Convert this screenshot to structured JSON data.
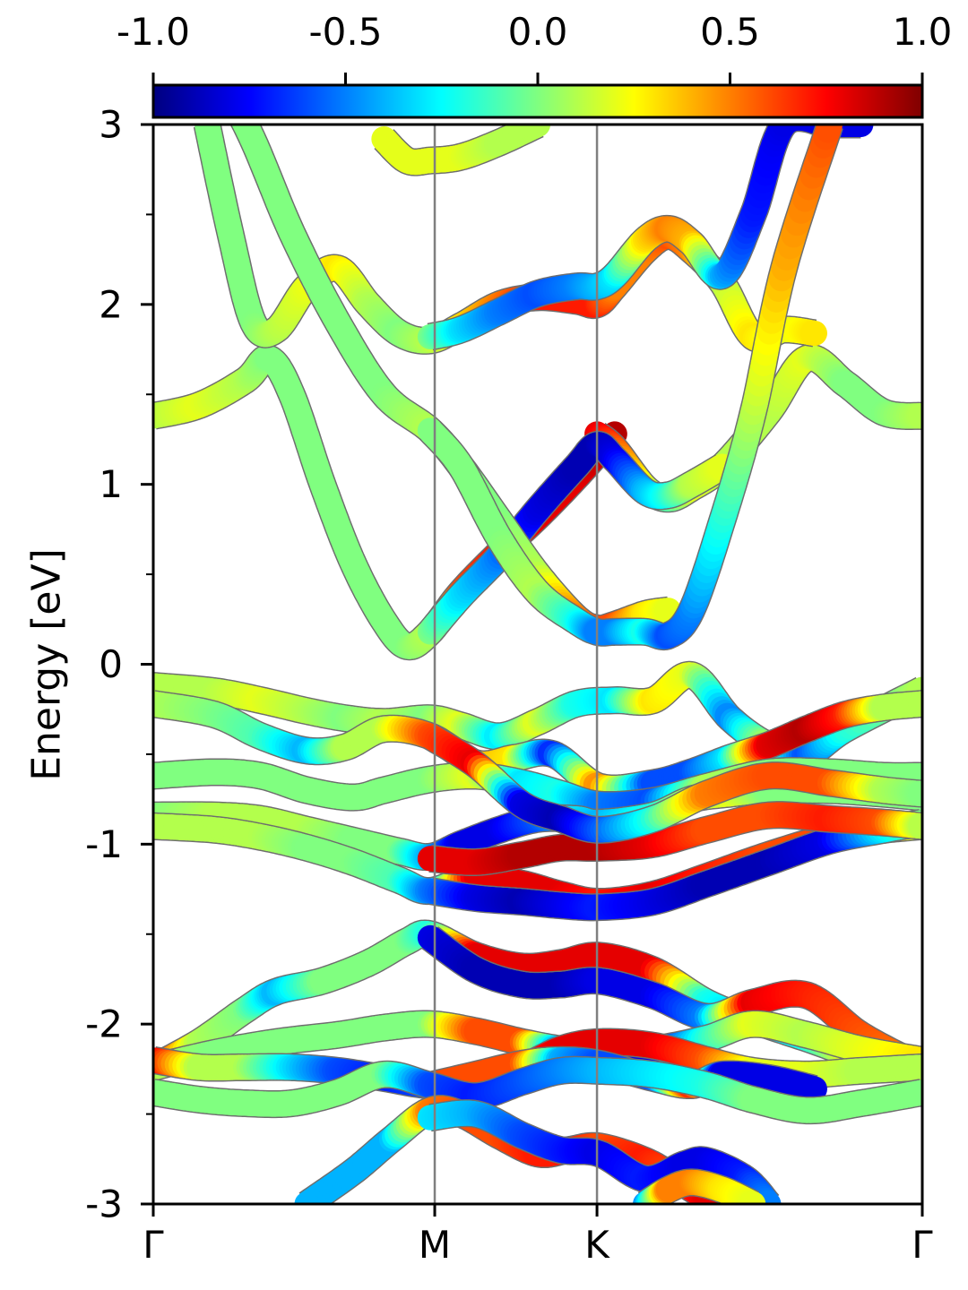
{
  "chart_data": {
    "type": "line",
    "title": "",
    "xlabel": "",
    "ylabel": "Energy [eV]",
    "ylim": [
      -3,
      3
    ],
    "yticks": [
      "3",
      "2",
      "1",
      "0",
      "-1",
      "-2",
      "-3"
    ],
    "ytick_values": [
      3,
      2,
      1,
      0,
      -1,
      -2,
      -3
    ],
    "x_high_symmetry_labels": [
      "Γ",
      "M",
      "K",
      "Γ"
    ],
    "x_high_symmetry_positions": [
      0,
      0.366,
      0.577,
      1.0
    ],
    "vertical_lines_at": [
      0.366,
      0.577
    ],
    "colorbar": {
      "range": [
        -1.0,
        1.0
      ],
      "tick_labels": [
        "-1.0",
        "-0.5",
        "0.0",
        "0.5",
        "1.0"
      ],
      "tick_values": [
        -1.0,
        -0.5,
        0.0,
        0.5,
        1.0
      ],
      "colormap": "jet"
    },
    "band_width_eV": 0.07,
    "series": [
      {
        "x": [
          0.0,
          0.08,
          0.14,
          0.2,
          0.25,
          0.3,
          0.36,
          0.4,
          0.45,
          0.5,
          0.55,
          0.6,
          0.65,
          0.7,
          0.75,
          0.8,
          0.85,
          0.9,
          1.0
        ],
        "values": [
          -0.12,
          -0.15,
          -0.2,
          -0.26,
          -0.3,
          -0.32,
          -0.3,
          -0.34,
          -0.4,
          -0.32,
          -0.22,
          -0.2,
          -0.2,
          -0.06,
          -0.3,
          -0.45,
          -0.5,
          -0.36,
          -0.14
        ],
        "w": [
          0.1,
          0.1,
          0.2,
          0.1,
          0.0,
          0.1,
          0.0,
          0.2,
          -0.3,
          0.2,
          -0.2,
          -0.3,
          0.3,
          0.2,
          -0.5,
          0.1,
          -0.6,
          -0.2,
          0.1
        ]
      },
      {
        "x": [
          0.0,
          0.08,
          0.14,
          0.2,
          0.25,
          0.3,
          0.36,
          0.42,
          0.47,
          0.52,
          0.58,
          0.65,
          0.7,
          0.75,
          0.8,
          0.85,
          0.9,
          0.95,
          1.0
        ],
        "values": [
          -0.22,
          -0.28,
          -0.4,
          -0.48,
          -0.46,
          -0.36,
          -0.4,
          -0.55,
          -0.52,
          -0.5,
          -0.68,
          -0.66,
          -0.6,
          -0.52,
          -0.45,
          -0.36,
          -0.28,
          -0.24,
          -0.22
        ],
        "w": [
          0.1,
          0.0,
          -0.1,
          -0.4,
          0.1,
          0.1,
          0.6,
          0.4,
          0.3,
          -0.7,
          0.5,
          -0.6,
          -0.6,
          -0.3,
          0.8,
          0.9,
          0.7,
          0.1,
          0.1
        ]
      },
      {
        "x": [
          0.0,
          0.08,
          0.14,
          0.2,
          0.26,
          0.3,
          0.36,
          0.42,
          0.48,
          0.53,
          0.58,
          0.65,
          0.72,
          0.8,
          0.88,
          0.95,
          1.0
        ],
        "values": [
          -0.62,
          -0.6,
          -0.62,
          -0.7,
          -0.74,
          -0.7,
          -0.64,
          -0.62,
          -0.66,
          -0.72,
          -0.78,
          -0.76,
          -0.68,
          -0.6,
          -0.6,
          -0.62,
          -0.62
        ],
        "w": [
          0.0,
          0.0,
          0.0,
          0.0,
          0.0,
          0.0,
          0.0,
          0.2,
          -0.3,
          -0.2,
          -0.5,
          -0.6,
          0.1,
          0.0,
          0.0,
          0.0,
          0.0
        ]
      },
      {
        "x": [
          0.0,
          0.08,
          0.14,
          0.2,
          0.26,
          0.32,
          0.36,
          0.4,
          0.45,
          0.5,
          0.55,
          0.58,
          0.65,
          0.7,
          0.75,
          0.8,
          0.88,
          0.95,
          1.0
        ],
        "values": [
          -0.84,
          -0.84,
          -0.86,
          -0.92,
          -0.98,
          -1.04,
          -1.07,
          -1.0,
          -0.92,
          -0.86,
          -0.86,
          -0.88,
          -0.84,
          -0.75,
          -0.72,
          -0.7,
          -0.7,
          -0.72,
          -0.74
        ],
        "w": [
          0.0,
          0.1,
          0.1,
          0.1,
          0.0,
          0.0,
          -0.4,
          -0.8,
          -0.8,
          -0.6,
          -0.3,
          -0.4,
          -0.2,
          0.1,
          0.2,
          0.0,
          0.0,
          0.0,
          0.0
        ]
      },
      {
        "x": [
          0.0,
          0.08,
          0.14,
          0.2,
          0.26,
          0.32,
          0.36,
          0.42,
          0.48,
          0.53,
          0.58,
          0.65,
          0.72,
          0.8,
          0.88,
          0.95,
          1.0
        ],
        "values": [
          -0.9,
          -0.92,
          -0.96,
          -1.02,
          -1.1,
          -1.2,
          -1.26,
          -1.18,
          -1.22,
          -1.28,
          -1.32,
          -1.28,
          -1.18,
          -1.06,
          -0.96,
          -0.92,
          -0.9
        ],
        "w": [
          0.1,
          0.1,
          0.1,
          0.0,
          0.0,
          -0.1,
          -0.5,
          0.8,
          0.8,
          0.8,
          0.7,
          0.8,
          0.7,
          0.6,
          0.6,
          0.5,
          0.1
        ]
      },
      {
        "x": [
          0.36,
          0.42,
          0.48,
          0.53,
          0.58,
          0.65,
          0.72,
          0.8,
          0.88,
          0.95,
          1.0
        ],
        "values": [
          -1.26,
          -1.3,
          -1.32,
          -1.34,
          -1.35,
          -1.32,
          -1.22,
          -1.1,
          -0.98,
          -0.92,
          -0.88
        ],
        "w": [
          -0.5,
          -0.8,
          -0.9,
          -0.8,
          -0.7,
          -0.8,
          -0.9,
          -0.9,
          -0.8,
          -0.3,
          0.0
        ]
      },
      {
        "x": [
          0.36,
          0.42,
          0.48,
          0.53,
          0.58,
          0.65,
          0.72,
          0.8,
          0.88,
          0.95,
          1.0
        ],
        "values": [
          -1.08,
          -1.1,
          -1.06,
          -1.02,
          -1.02,
          -1.0,
          -0.92,
          -0.84,
          -0.86,
          -0.88,
          -0.9
        ],
        "w": [
          0.8,
          0.8,
          0.9,
          0.9,
          0.9,
          0.8,
          0.6,
          0.6,
          0.7,
          0.6,
          0.1
        ]
      },
      {
        "x": [
          0.36,
          0.42,
          0.48,
          0.53,
          0.58,
          0.65,
          0.72,
          0.8,
          0.88,
          0.95,
          1.0
        ],
        "values": [
          -0.4,
          -0.56,
          -0.78,
          -0.86,
          -0.92,
          -0.86,
          -0.72,
          -0.62,
          -0.66,
          -0.7,
          -0.72
        ],
        "w": [
          0.6,
          0.8,
          -0.8,
          -0.9,
          -0.6,
          -0.2,
          0.5,
          0.6,
          0.6,
          0.1,
          0.0
        ]
      },
      {
        "x": [
          0.0,
          0.06,
          0.12,
          0.16,
          0.22,
          0.28,
          0.33,
          0.36,
          0.42,
          0.48,
          0.53,
          0.58,
          0.65,
          0.72,
          0.78,
          0.85,
          0.92,
          1.0
        ],
        "values": [
          -2.24,
          -2.1,
          -1.92,
          -1.82,
          -1.76,
          -1.66,
          -1.54,
          -1.5,
          -1.62,
          -1.68,
          -1.66,
          -1.62,
          -1.7,
          -1.88,
          -1.98,
          -2.08,
          -2.18,
          -2.24
        ],
        "w": [
          0.8,
          0.1,
          0.0,
          -0.4,
          0.0,
          0.0,
          0.0,
          -0.2,
          0.8,
          0.8,
          0.8,
          0.8,
          0.8,
          -0.2,
          -0.4,
          -0.2,
          0.3,
          0.6
        ]
      },
      {
        "x": [
          0.36,
          0.42,
          0.48,
          0.53,
          0.58,
          0.65,
          0.72,
          0.78,
          0.85,
          0.92,
          1.0
        ],
        "values": [
          -1.52,
          -1.7,
          -1.78,
          -1.78,
          -1.76,
          -1.84,
          -1.96,
          -1.88,
          -1.84,
          -2.06,
          -2.24
        ],
        "w": [
          -0.8,
          -0.9,
          -0.9,
          -0.9,
          -0.8,
          -0.8,
          -0.5,
          0.8,
          0.7,
          0.6,
          0.5
        ]
      },
      {
        "x": [
          0.0,
          0.08,
          0.16,
          0.24,
          0.3,
          0.36,
          0.42,
          0.48,
          0.53,
          0.58,
          0.65,
          0.72,
          0.78,
          0.85,
          0.92,
          1.0
        ],
        "values": [
          -2.24,
          -2.16,
          -2.1,
          -2.06,
          -2.02,
          -2.0,
          -2.04,
          -2.1,
          -2.14,
          -2.16,
          -2.14,
          -2.08,
          -2.0,
          -2.06,
          -2.14,
          -2.2
        ],
        "w": [
          0.1,
          0.0,
          0.0,
          0.0,
          0.0,
          0.0,
          0.6,
          0.6,
          -0.5,
          -0.7,
          -0.8,
          -0.2,
          0.2,
          0.1,
          0.2,
          0.3
        ]
      },
      {
        "x": [
          0.0,
          0.06,
          0.12,
          0.18,
          0.24,
          0.3,
          0.36,
          0.42,
          0.48,
          0.53,
          0.58,
          0.65,
          0.72,
          0.78,
          0.85,
          0.92,
          1.0
        ],
        "values": [
          -2.2,
          -2.24,
          -2.24,
          -2.24,
          -2.26,
          -2.3,
          -2.34,
          -2.32,
          -2.24,
          -2.14,
          -2.1,
          -2.12,
          -2.2,
          -2.26,
          -2.28,
          -2.26,
          -2.24
        ],
        "w": [
          0.8,
          0.1,
          0.1,
          -0.3,
          -0.6,
          -0.7,
          -0.6,
          0.7,
          0.7,
          0.8,
          0.8,
          0.8,
          0.6,
          0.2,
          0.2,
          0.1,
          0.1
        ]
      },
      {
        "x": [
          0.36,
          0.42,
          0.48,
          0.53,
          0.58,
          0.65,
          0.7,
          0.74,
          0.8,
          0.86
        ],
        "values": [
          -2.34,
          -2.28,
          -2.22,
          -2.2,
          -2.22,
          -2.3,
          -2.34,
          -2.28,
          -2.3,
          -2.36
        ],
        "w": [
          0.6,
          0.6,
          0.6,
          -0.4,
          -0.6,
          -0.6,
          0.7,
          -0.8,
          -0.8,
          -0.8
        ]
      },
      {
        "x": [
          0.0,
          0.06,
          0.12,
          0.18,
          0.24,
          0.3,
          0.36,
          0.42,
          0.48,
          0.53,
          0.58,
          0.65,
          0.72,
          0.78,
          0.85,
          0.92,
          1.0
        ],
        "values": [
          -2.38,
          -2.42,
          -2.44,
          -2.44,
          -2.38,
          -2.28,
          -2.34,
          -2.4,
          -2.32,
          -2.26,
          -2.26,
          -2.28,
          -2.34,
          -2.42,
          -2.48,
          -2.44,
          -2.38
        ],
        "w": [
          0.0,
          0.0,
          0.0,
          0.0,
          0.0,
          0.0,
          -0.6,
          -0.7,
          -0.6,
          -0.5,
          -0.4,
          -0.3,
          -0.2,
          0.0,
          0.0,
          0.0,
          0.0
        ]
      },
      {
        "x": [
          0.2,
          0.26,
          0.31,
          0.36,
          0.4,
          0.45,
          0.5,
          0.54,
          0.58,
          0.64,
          0.68,
          0.72,
          0.77
        ],
        "values": [
          -3.0,
          -2.82,
          -2.64,
          -2.48,
          -2.5,
          -2.62,
          -2.72,
          -2.7,
          -2.68,
          -2.76,
          -2.86,
          -2.96,
          -3.0
        ],
        "w": [
          -0.4,
          -0.4,
          -0.4,
          0.5,
          0.6,
          0.6,
          0.7,
          0.7,
          0.6,
          0.7,
          0.6,
          0.8,
          0.8
        ]
      },
      {
        "x": [
          0.36,
          0.42,
          0.48,
          0.53,
          0.58,
          0.64,
          0.69,
          0.72,
          0.77,
          0.8
        ],
        "values": [
          -2.52,
          -2.5,
          -2.62,
          -2.7,
          -2.72,
          -2.86,
          -2.78,
          -2.76,
          -2.86,
          -3.0
        ],
        "w": [
          -0.3,
          -0.4,
          -0.6,
          -0.7,
          -0.8,
          -0.7,
          -0.8,
          -0.8,
          -0.7,
          -0.5
        ]
      },
      {
        "x": [
          0.64,
          0.67,
          0.7,
          0.74,
          0.78
        ],
        "values": [
          -3.0,
          -2.92,
          -2.88,
          -2.92,
          -3.0
        ],
        "w": [
          -0.5,
          0.5,
          0.5,
          0.3,
          0.2
        ]
      },
      {
        "x": [
          0.0,
          0.06,
          0.12,
          0.15,
          0.18,
          0.22,
          0.26,
          0.3,
          0.33,
          0.36,
          0.4,
          0.45,
          0.5,
          0.55,
          0.6
        ],
        "values": [
          1.38,
          1.44,
          1.58,
          1.7,
          1.5,
          1.0,
          0.56,
          0.24,
          0.1,
          0.18,
          0.4,
          0.62,
          0.82,
          1.04,
          1.28
        ],
        "w": [
          0.1,
          0.2,
          0.1,
          0.0,
          0.0,
          0.0,
          0.0,
          0.0,
          0.0,
          0.1,
          0.6,
          0.7,
          0.8,
          0.8,
          0.9
        ]
      },
      {
        "x": [
          0.577,
          0.6,
          0.64,
          0.67,
          0.7,
          0.74,
          0.8,
          0.85,
          0.9,
          0.95,
          1.0
        ],
        "values": [
          1.28,
          1.2,
          0.98,
          0.92,
          0.98,
          1.1,
          1.4,
          1.7,
          1.56,
          1.4,
          1.38
        ],
        "w": [
          0.8,
          0.6,
          0.2,
          -0.1,
          0.2,
          0.1,
          0.1,
          0.2,
          0.0,
          0.0,
          0.1
        ]
      },
      {
        "x": [
          0.36,
          0.4,
          0.45,
          0.5,
          0.55,
          0.577,
          0.6,
          0.64,
          0.67,
          0.7,
          0.74
        ],
        "values": [
          0.18,
          0.38,
          0.6,
          0.86,
          1.1,
          1.22,
          1.14,
          0.96,
          0.94,
          1.0,
          1.1
        ],
        "w": [
          0.0,
          -0.3,
          -0.5,
          -0.8,
          -0.9,
          -0.9,
          -0.8,
          -0.4,
          -0.2,
          0.1,
          0.2
        ]
      },
      {
        "x": [
          0.07,
          0.1,
          0.13,
          0.16,
          0.2,
          0.24,
          0.28,
          0.32,
          0.36,
          0.4,
          0.45,
          0.5,
          0.55,
          0.577,
          0.6,
          0.64,
          0.67,
          0.7,
          0.74,
          0.78,
          0.82,
          0.86
        ],
        "values": [
          3.0,
          2.4,
          1.9,
          1.86,
          2.1,
          2.2,
          2.0,
          1.84,
          1.8,
          1.88,
          2.0,
          2.04,
          2.02,
          2.0,
          2.1,
          2.3,
          2.38,
          2.3,
          2.12,
          1.82,
          1.86,
          1.84
        ],
        "w": [
          0.0,
          0.0,
          0.0,
          0.1,
          0.2,
          0.3,
          0.1,
          0.0,
          0.1,
          0.3,
          0.5,
          0.7,
          0.7,
          0.7,
          0.5,
          0.5,
          0.6,
          0.5,
          0.1,
          0.3,
          0.2,
          0.3
        ]
      },
      {
        "x": [
          0.36,
          0.4,
          0.45,
          0.5,
          0.55,
          0.577,
          0.6,
          0.64,
          0.67,
          0.7,
          0.74,
          0.78,
          0.82,
          0.88,
          0.92
        ],
        "values": [
          1.82,
          1.86,
          1.96,
          2.06,
          2.1,
          2.1,
          2.16,
          2.36,
          2.42,
          2.34,
          2.16,
          2.5,
          3.0,
          3.0,
          3.0
        ],
        "w": [
          0.0,
          -0.3,
          -0.5,
          -0.6,
          -0.5,
          -0.4,
          -0.3,
          0.3,
          0.5,
          0.4,
          -0.4,
          -0.7,
          -0.8,
          -0.8,
          -0.8
        ]
      },
      {
        "x": [
          0.0,
          0.06,
          0.12,
          0.18,
          0.24,
          0.3,
          0.36,
          0.4,
          0.45,
          0.5,
          0.55,
          0.577,
          0.6,
          0.64,
          0.67
        ],
        "values": [
          3.6,
          3.4,
          3.0,
          2.4,
          1.9,
          1.5,
          1.3,
          1.1,
          0.8,
          0.5,
          0.26,
          0.2,
          0.22,
          0.28,
          0.3
        ],
        "w": [
          0.0,
          0.0,
          0.0,
          0.0,
          0.0,
          0.0,
          0.1,
          0.0,
          0.0,
          0.1,
          0.5,
          0.6,
          0.6,
          0.3,
          0.2
        ]
      },
      {
        "x": [
          0.36,
          0.4,
          0.45,
          0.5,
          0.55,
          0.577,
          0.6,
          0.64,
          0.67,
          0.7,
          0.74,
          0.78,
          0.82,
          0.88
        ],
        "values": [
          1.3,
          1.1,
          0.7,
          0.4,
          0.24,
          0.18,
          0.18,
          0.18,
          0.16,
          0.3,
          0.8,
          1.4,
          2.2,
          3.0
        ],
        "w": [
          0.0,
          0.0,
          0.0,
          0.1,
          -0.2,
          -0.5,
          -0.5,
          -0.2,
          -0.6,
          -0.5,
          -0.2,
          0.1,
          0.4,
          0.6
        ]
      },
      {
        "x": [
          0.3,
          0.33,
          0.36,
          0.4,
          0.45,
          0.5
        ],
        "values": [
          2.92,
          2.8,
          2.8,
          2.82,
          2.9,
          3.0
        ],
        "w": [
          0.2,
          0.2,
          0.2,
          0.2,
          0.1,
          0.1
        ]
      }
    ]
  }
}
